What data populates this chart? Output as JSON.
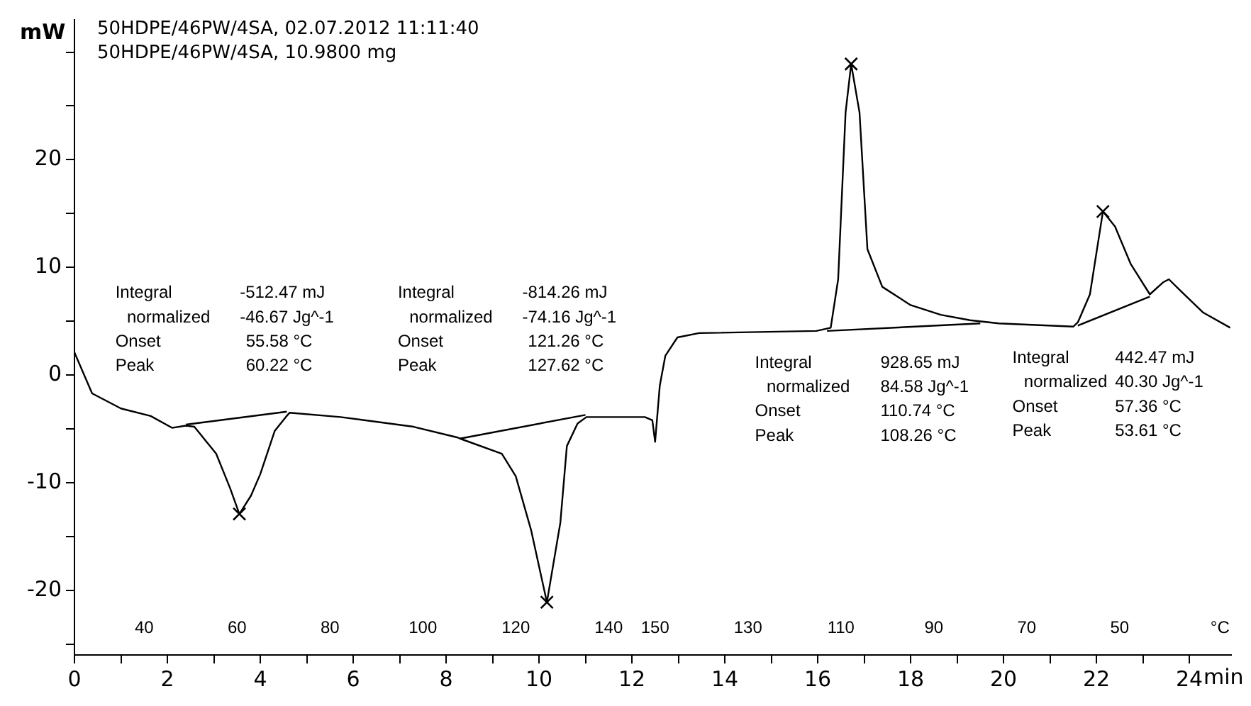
{
  "chart_data": {
    "type": "line",
    "title": "50HDPE/46PW/4SA, 02.07.2012 11:11:40",
    "subtitle": "50HDPE/46PW/4SA, 10.9800 mg",
    "xlabel": "min",
    "ylabel": "mW",
    "xlim": [
      0,
      24.9
    ],
    "ylim": [
      -26,
      33
    ],
    "xticks": [
      0,
      {
        "value": 1,
        "label": null
      },
      2,
      {
        "value": 3,
        "label": null
      },
      4,
      {
        "value": 5,
        "label": null
      },
      6,
      {
        "value": 7,
        "label": null
      },
      8,
      {
        "value": 9,
        "label": null
      },
      10,
      {
        "value": 11,
        "label": null
      },
      12,
      {
        "value": 13,
        "label": null
      },
      14,
      {
        "value": 15,
        "label": null
      },
      16,
      {
        "value": 17,
        "label": null
      },
      18,
      {
        "value": 19,
        "label": null
      },
      20,
      {
        "value": 21,
        "label": null
      },
      22,
      {
        "value": 23,
        "label": null
      },
      24
    ],
    "yticks": [
      {
        "value": -25,
        "label": null
      },
      -20,
      {
        "value": -15,
        "label": null
      },
      -10,
      {
        "value": -5,
        "label": null
      },
      0,
      {
        "value": 5,
        "label": null
      },
      10,
      {
        "value": 15,
        "label": null
      },
      20,
      {
        "value": 25,
        "label": null
      },
      {
        "value": 30,
        "label": null
      }
    ],
    "grid": false,
    "legend": false,
    "series": [
      {
        "color": "#000000",
        "x": [
          0,
          0.38,
          1.0,
          1.64,
          2.1,
          2.4,
          2.58,
          3.05,
          3.35,
          3.55,
          3.8,
          4.0,
          4.31,
          4.57,
          4.63,
          5.73,
          7.3,
          8.25,
          8.3,
          9.2,
          9.5,
          9.83,
          10.17,
          10.46,
          10.6,
          10.83,
          11.02,
          12.28,
          12.44,
          12.5,
          12.6,
          12.72,
          12.98,
          13.45,
          15.97,
          16.28,
          16.44,
          16.6,
          16.72,
          16.9,
          17.07,
          17.39,
          18.0,
          18.65,
          19.28,
          19.9,
          21.5,
          21.6,
          21.86,
          22.14,
          22.4,
          22.74,
          23.15,
          23.43,
          23.56,
          23.84,
          24.3,
          24.88
        ],
        "values": [
          2.1,
          -1.7,
          -3.1,
          -3.8,
          -4.9,
          -4.7,
          -4.8,
          -7.3,
          -10.5,
          -12.9,
          -11.2,
          -9.2,
          -5.2,
          -3.8,
          -3.5,
          -3.9,
          -4.8,
          -5.8,
          -5.9,
          -7.3,
          -9.4,
          -14.4,
          -21.1,
          -13.7,
          -6.6,
          -4.5,
          -3.9,
          -3.9,
          -4.2,
          -6.2,
          -1.0,
          1.8,
          3.5,
          3.9,
          4.1,
          4.4,
          8.9,
          24.4,
          28.9,
          24.4,
          11.7,
          8.2,
          6.5,
          5.6,
          5.1,
          4.8,
          4.5,
          4.9,
          7.5,
          15.2,
          13.8,
          10.3,
          7.5,
          8.6,
          8.9,
          7.7,
          5.8,
          4.4
        ]
      },
      {
        "type": "line",
        "color": "#000000",
        "x": [
          2.4,
          4.57
        ],
        "values": [
          -4.6,
          -3.4
        ]
      },
      {
        "type": "line",
        "color": "#000000",
        "x": [
          8.3,
          11.0
        ],
        "values": [
          -5.9,
          -3.7
        ]
      },
      {
        "type": "line",
        "color": "#000000",
        "x": [
          16.2,
          19.5
        ],
        "values": [
          4.1,
          4.8
        ]
      },
      {
        "type": "line",
        "color": "#000000",
        "x": [
          21.6,
          23.15
        ],
        "values": [
          4.6,
          7.3
        ]
      },
      {
        "type": "scatter",
        "color": "#000000",
        "marker": "cross",
        "x": [
          3.55,
          10.17,
          16.72,
          22.14
        ],
        "values": [
          -12.9,
          -21.1,
          28.9,
          15.2
        ]
      }
    ],
    "annotations": [
      "Integral",
      "normalized",
      "Onset",
      "Peak",
      "-512.47 mJ",
      "-46.67 Jg^-1",
      "55.58 °C",
      "60.22 °C",
      "Integral",
      "normalized",
      "Onset",
      "Peak",
      "-814.26 mJ",
      "-74.16 Jg^-1",
      "121.26 °C",
      "127.62 °C",
      "Integral",
      "normalized",
      "Onset",
      "Peak",
      "928.65 mJ",
      "84.58 Jg^-1",
      "110.74 °C",
      "108.26 °C",
      "Integral",
      "normalized",
      "Onset",
      "Peak",
      "442.47 mJ",
      "40.30 Jg^-1",
      "57.36 °C",
      "53.61 °C",
      "40",
      "60",
      "80",
      "100",
      "120",
      "140",
      "150",
      "130",
      "110",
      "90",
      "70",
      "50",
      "°C"
    ]
  }
}
